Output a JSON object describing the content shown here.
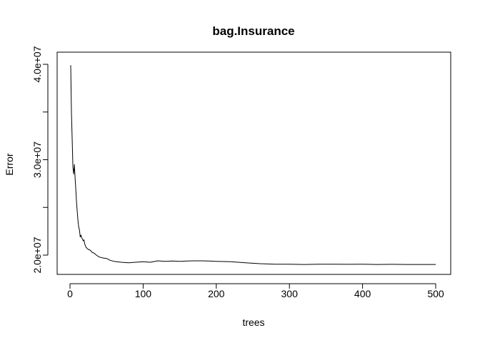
{
  "chart_data": {
    "type": "line",
    "title": "bag.Insurance",
    "xlabel": "trees",
    "ylabel": "Error",
    "xlim": [
      0,
      500
    ],
    "ylim": [
      19000000,
      40000000
    ],
    "grid": false,
    "xticks": [
      0,
      100,
      200,
      300,
      400,
      500
    ],
    "xtick_labels": [
      "0",
      "100",
      "200",
      "300",
      "400",
      "500"
    ],
    "yticks": [
      20000000,
      25000000,
      30000000,
      35000000,
      40000000
    ],
    "ytick_labels": [
      "2.0e+07",
      "",
      "3.0e+07",
      "",
      "4.0e+07"
    ],
    "series": [
      {
        "color": "#000000",
        "x": [
          1,
          2,
          3,
          4,
          5,
          6,
          7,
          8,
          9,
          10,
          11,
          12,
          13,
          14,
          15,
          16,
          17,
          18,
          19,
          20,
          22,
          25,
          28,
          30,
          33,
          36,
          40,
          45,
          50,
          55,
          60,
          70,
          80,
          90,
          100,
          110,
          120,
          130,
          140,
          150,
          160,
          170,
          180,
          190,
          200,
          220,
          240,
          260,
          280,
          300,
          320,
          340,
          360,
          380,
          400,
          420,
          440,
          460,
          480,
          500
        ],
        "y": [
          39900000,
          35000000,
          32000000,
          29200000,
          28500000,
          29500000,
          28000000,
          26800000,
          25500000,
          24500000,
          23500000,
          22900000,
          22600000,
          21900000,
          22100000,
          21800000,
          21700000,
          21500000,
          21600000,
          21200000,
          20800000,
          20600000,
          20500000,
          20300000,
          20200000,
          20000000,
          19800000,
          19700000,
          19650000,
          19450000,
          19350000,
          19250000,
          19200000,
          19250000,
          19300000,
          19250000,
          19400000,
          19350000,
          19380000,
          19350000,
          19380000,
          19400000,
          19400000,
          19380000,
          19350000,
          19300000,
          19200000,
          19100000,
          19050000,
          19050000,
          19020000,
          19050000,
          19050000,
          19030000,
          19050000,
          19020000,
          19030000,
          19020000,
          19020000,
          19020000
        ]
      }
    ]
  }
}
